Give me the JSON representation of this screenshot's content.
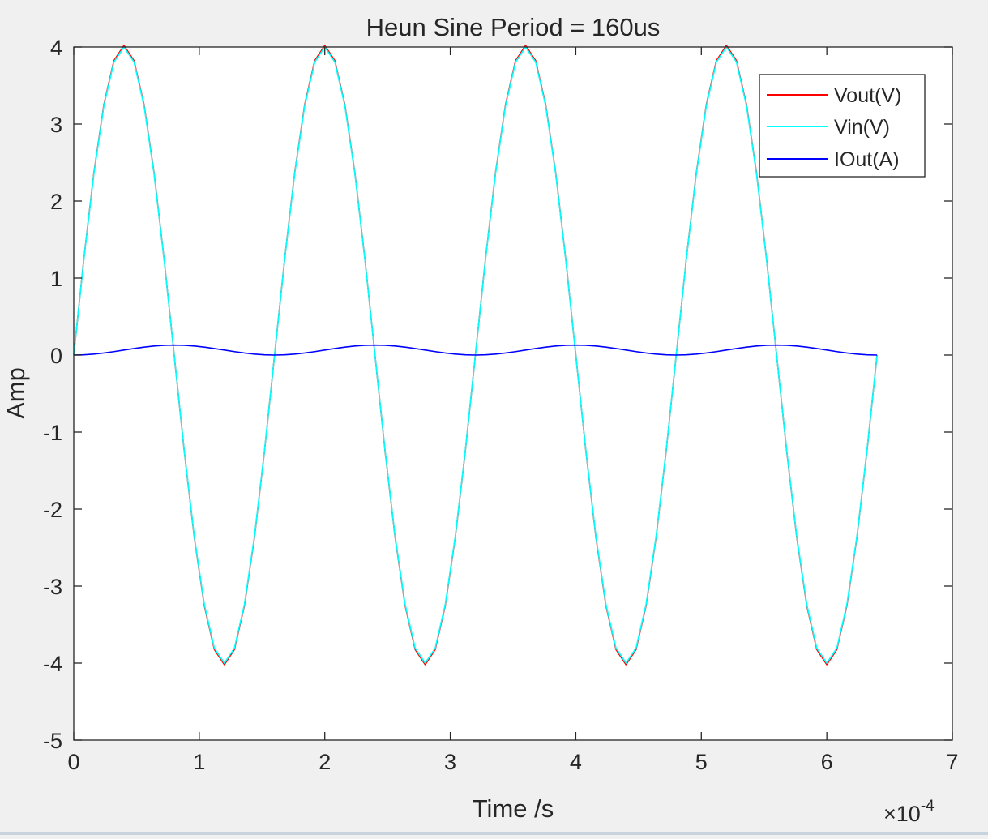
{
  "chart_data": {
    "type": "line",
    "title": "Heun Sine Period = 160us",
    "xlabel": "Time /s",
    "ylabel": "Amp",
    "x_exponent_base": "×10",
    "x_exponent_power": "-4",
    "xlim": [
      0,
      7
    ],
    "ylim": [
      -5,
      4
    ],
    "xticks": [
      0,
      1,
      2,
      3,
      4,
      5,
      6,
      7
    ],
    "yticks": [
      4,
      3,
      2,
      1,
      0,
      -1,
      -2,
      -3,
      -4,
      -5
    ],
    "x_scale": 0.0001,
    "legend_position": "top-right",
    "series": [
      {
        "name": "Vout(V)",
        "color": "#ff0000",
        "formula": "4*sin(2*pi*t/1.6)",
        "x_start": 0,
        "x_end": 6.4,
        "x_step": 0.08
      },
      {
        "name": "Vin(V)",
        "color": "#00ffff",
        "formula": "4*sin(2*pi*t/1.6)",
        "x_start": 0,
        "x_end": 6.4,
        "x_step": 0.08
      },
      {
        "name": "IOut(A)",
        "color": "#0000ff",
        "formula": "0.065*(1-cos(2*pi*t/1.6))",
        "x_start": 0,
        "x_end": 6.4,
        "x_step": 0.08
      }
    ]
  }
}
